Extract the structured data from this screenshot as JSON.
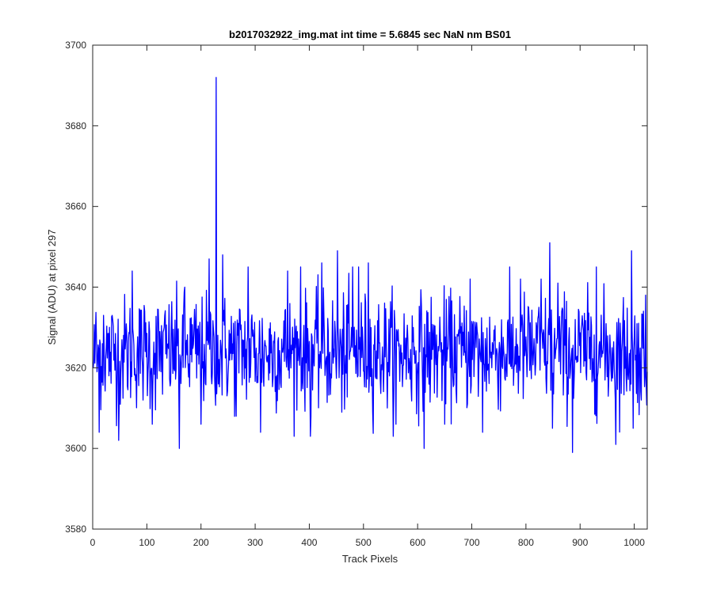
{
  "chart_data": {
    "type": "line",
    "title": "b2017032922_img.mat int time = 5.6845 sec  NaN nm BS01",
    "xlabel": "Track Pixels",
    "ylabel": "Signal (ADU) at pixel 297",
    "xlim": [
      0,
      1024
    ],
    "ylim": [
      3580,
      3700
    ],
    "xticks": [
      0,
      100,
      200,
      300,
      400,
      500,
      600,
      700,
      800,
      900,
      1000
    ],
    "yticks": [
      3580,
      3600,
      3620,
      3640,
      3660,
      3680,
      3700
    ],
    "grid": false,
    "series": [
      {
        "color": "#0000ff",
        "description": "noisy trace, roughly mean 3624 ADU, std ~7",
        "x_start": 1,
        "x_end": 1024,
        "key_points": [
          [
            1,
            3620
          ],
          [
            5,
            3628
          ],
          [
            8,
            3619
          ],
          [
            12,
            3604
          ],
          [
            20,
            3633
          ],
          [
            30,
            3618
          ],
          [
            48,
            3602
          ],
          [
            73,
            3644
          ],
          [
            110,
            3606
          ],
          [
            160,
            3600
          ],
          [
            170,
            3640
          ],
          [
            200,
            3606
          ],
          [
            215,
            3647
          ],
          [
            225,
            3618
          ],
          [
            228,
            3692
          ],
          [
            232,
            3616
          ],
          [
            240,
            3648
          ],
          [
            265,
            3608
          ],
          [
            287,
            3645
          ],
          [
            310,
            3604
          ],
          [
            360,
            3644
          ],
          [
            384,
            3645
          ],
          [
            402,
            3603
          ],
          [
            423,
            3646
          ],
          [
            452,
            3649
          ],
          [
            460,
            3609
          ],
          [
            480,
            3645
          ],
          [
            491,
            3645
          ],
          [
            509,
            3646
          ],
          [
            560,
            3606
          ],
          [
            612,
            3600
          ],
          [
            650,
            3606
          ],
          [
            697,
            3642
          ],
          [
            720,
            3604
          ],
          [
            790,
            3642
          ],
          [
            828,
            3642
          ],
          [
            844,
            3651
          ],
          [
            849,
            3605
          ],
          [
            859,
            3641
          ],
          [
            886,
            3599
          ],
          [
            930,
            3645
          ],
          [
            966,
            3601
          ],
          [
            995,
            3649
          ],
          [
            998,
            3605
          ],
          [
            1013,
            3612
          ],
          [
            1021,
            3638
          ],
          [
            1024,
            3619
          ]
        ],
        "mean": 3624,
        "amplitude": 7
      }
    ]
  }
}
